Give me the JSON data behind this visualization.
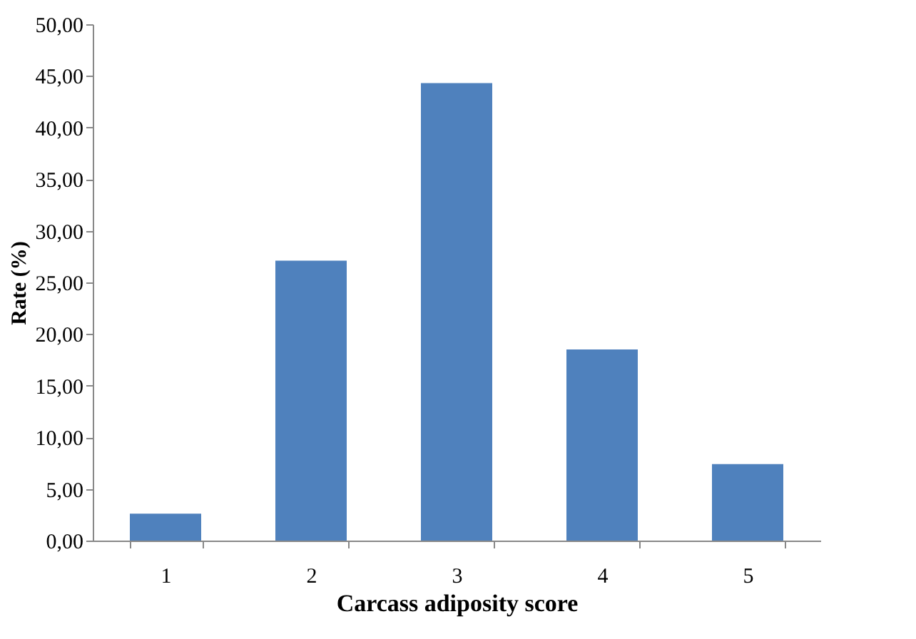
{
  "chart_data": {
    "type": "bar",
    "xlabel": "Carcass adiposity score",
    "ylabel": "Rate (%)",
    "categories": [
      "1",
      "2",
      "3",
      "4",
      "5"
    ],
    "values": [
      2.6,
      27.1,
      44.3,
      18.5,
      7.4
    ],
    "color": "#4f81bd",
    "ylim": [
      0,
      50
    ],
    "yticks": [
      {
        "value": 0,
        "label": "0,00"
      },
      {
        "value": 5,
        "label": "5,00"
      },
      {
        "value": 10,
        "label": "10,00"
      },
      {
        "value": 15,
        "label": "15,00"
      },
      {
        "value": 20,
        "label": "20,00"
      },
      {
        "value": 25,
        "label": "25,00"
      },
      {
        "value": 30,
        "label": "30,00"
      },
      {
        "value": 35,
        "label": "35,00"
      },
      {
        "value": 40,
        "label": "40,00"
      },
      {
        "value": 45,
        "label": "45,00"
      },
      {
        "value": 50,
        "label": "50,00"
      }
    ],
    "grid": false
  }
}
